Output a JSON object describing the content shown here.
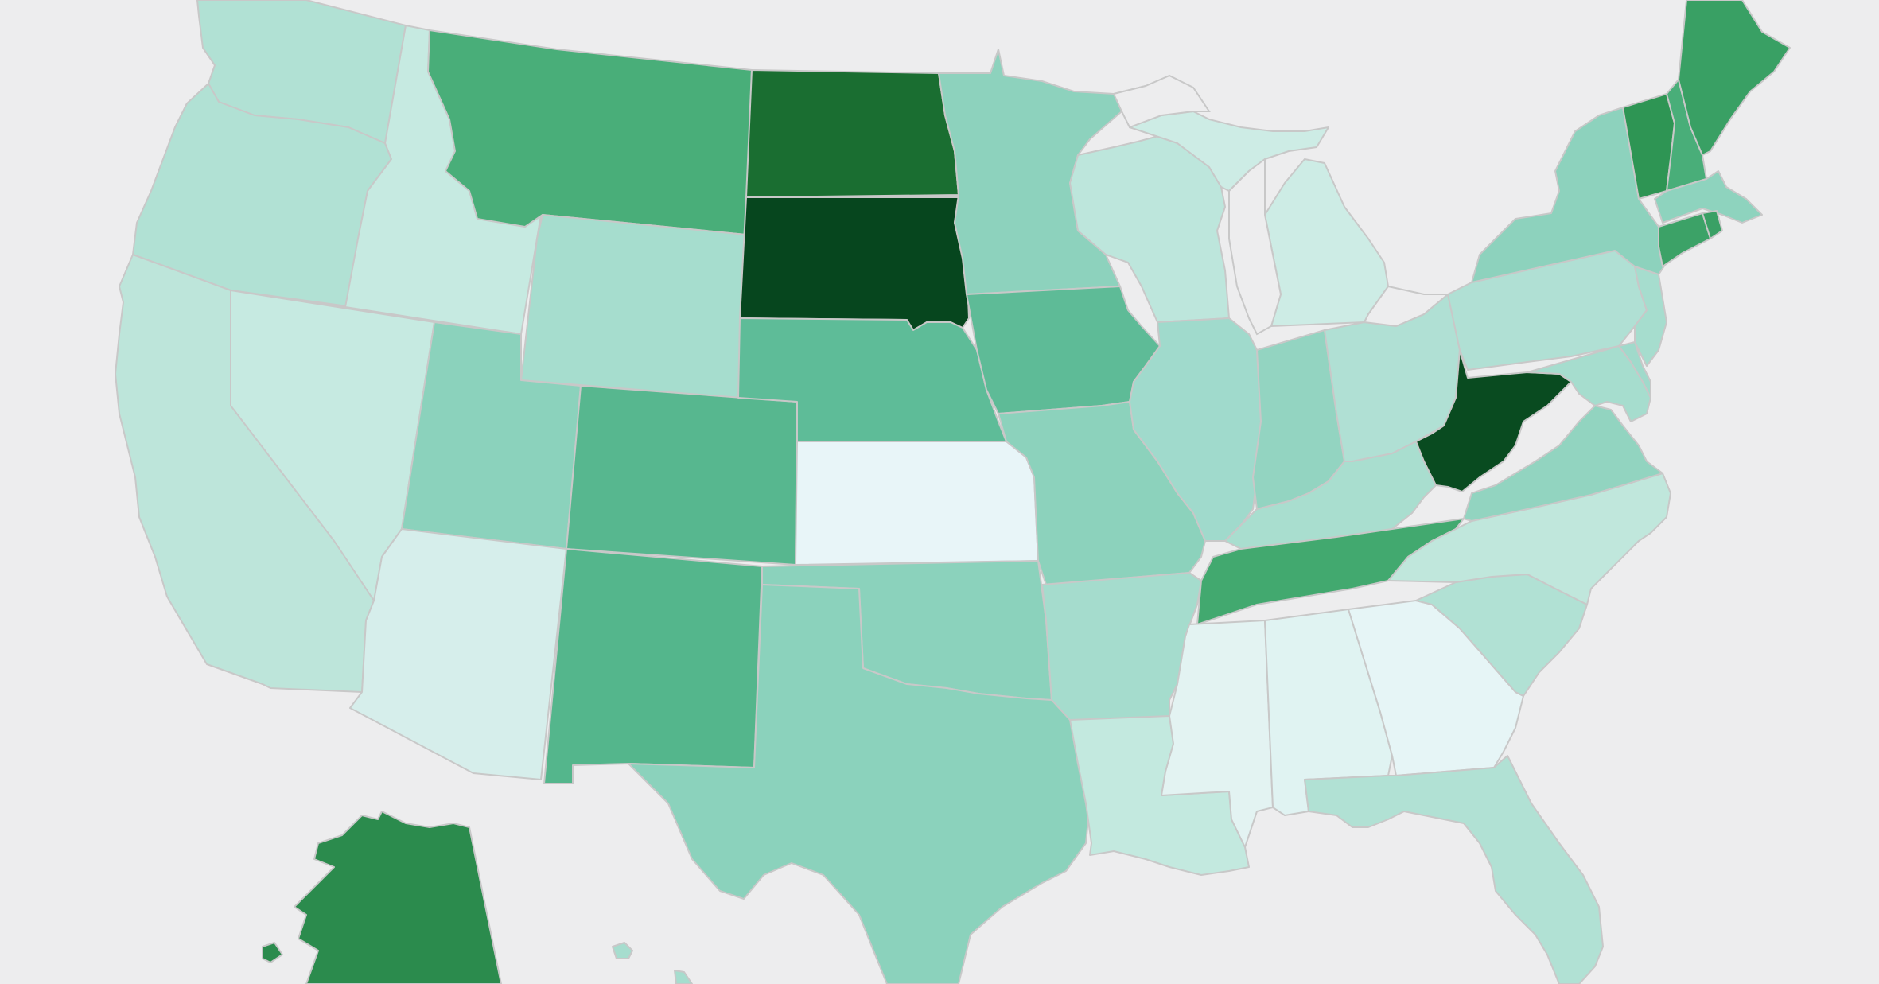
{
  "map": {
    "type": "choropleth",
    "region": "United States",
    "color_scale": [
      "#e8f5f8",
      "#d6eeeb",
      "#c3e9df",
      "#b1e1d4",
      "#a4dccd",
      "#8bd2bc",
      "#5dbb97",
      "#47ad78",
      "#3aa065",
      "#2b8b4d",
      "#1b6e31",
      "#06461e"
    ],
    "states": [
      {
        "code": "WA",
        "level": 4,
        "color": "#b1e1d4"
      },
      {
        "code": "OR",
        "level": 4,
        "color": "#b1e1d4"
      },
      {
        "code": "CA",
        "level": 3,
        "color": "#bde5da"
      },
      {
        "code": "ID",
        "level": 2,
        "color": "#c6eae1"
      },
      {
        "code": "NV",
        "level": 2,
        "color": "#c6eae1"
      },
      {
        "code": "MT",
        "level": 8,
        "color": "#49ae79"
      },
      {
        "code": "WY",
        "level": 5,
        "color": "#a6ddce"
      },
      {
        "code": "UT",
        "level": 6,
        "color": "#8bd2bc"
      },
      {
        "code": "AZ",
        "level": 1,
        "color": "#d6eeeb"
      },
      {
        "code": "CO",
        "level": 7,
        "color": "#57b78f"
      },
      {
        "code": "NM",
        "level": 7,
        "color": "#54b68c"
      },
      {
        "code": "ND",
        "level": 11,
        "color": "#1a6e31"
      },
      {
        "code": "SD",
        "level": 12,
        "color": "#06461e"
      },
      {
        "code": "NE",
        "level": 7,
        "color": "#5ebc98"
      },
      {
        "code": "KS",
        "level": 0,
        "color": "#e8f5f8"
      },
      {
        "code": "OK",
        "level": 6,
        "color": "#8bd2bc"
      },
      {
        "code": "TX",
        "level": 6,
        "color": "#8bd2bc"
      },
      {
        "code": "MN",
        "level": 6,
        "color": "#8dd2bd"
      },
      {
        "code": "IA",
        "level": 7,
        "color": "#5ebb97"
      },
      {
        "code": "MO",
        "level": 6,
        "color": "#8cd2bc"
      },
      {
        "code": "AR",
        "level": 5,
        "color": "#a5dccd"
      },
      {
        "code": "LA",
        "level": 2,
        "color": "#c3e9df"
      },
      {
        "code": "WI",
        "level": 3,
        "color": "#bde6dc"
      },
      {
        "code": "IL",
        "level": 5,
        "color": "#a0dacc"
      },
      {
        "code": "MI",
        "level": 2,
        "color": "#cdece5"
      },
      {
        "code": "IN",
        "level": 6,
        "color": "#93d4c1"
      },
      {
        "code": "OH",
        "level": 4,
        "color": "#b0e0d4"
      },
      {
        "code": "KY",
        "level": 5,
        "color": "#a9decf"
      },
      {
        "code": "TN",
        "level": 8,
        "color": "#42a96f"
      },
      {
        "code": "MS",
        "level": 1,
        "color": "#e3f3f2"
      },
      {
        "code": "AL",
        "level": 1,
        "color": "#e0f3f2"
      },
      {
        "code": "GA",
        "level": 0,
        "color": "#e6f5f6"
      },
      {
        "code": "FL",
        "level": 4,
        "color": "#b1e1d4"
      },
      {
        "code": "SC",
        "level": 4,
        "color": "#b1e1d4"
      },
      {
        "code": "NC",
        "level": 3,
        "color": "#c0e7dc"
      },
      {
        "code": "VA",
        "level": 6,
        "color": "#92d4c0"
      },
      {
        "code": "WV",
        "level": 12,
        "color": "#094b20"
      },
      {
        "code": "PA",
        "level": 4,
        "color": "#b0e0d4"
      },
      {
        "code": "NY",
        "level": 6,
        "color": "#8dd2bd"
      },
      {
        "code": "NJ",
        "level": 5,
        "color": "#a6ddce"
      },
      {
        "code": "DE",
        "level": 5,
        "color": "#a0dacb"
      },
      {
        "code": "MD",
        "level": 5,
        "color": "#a6ddce"
      },
      {
        "code": "CT",
        "level": 9,
        "color": "#3ca267"
      },
      {
        "code": "RI",
        "level": 9,
        "color": "#3aa065"
      },
      {
        "code": "MA",
        "level": 6,
        "color": "#8ed3be"
      },
      {
        "code": "VT",
        "level": 10,
        "color": "#2e9554"
      },
      {
        "code": "NH",
        "level": 8,
        "color": "#49ae79"
      },
      {
        "code": "ME",
        "level": 9,
        "color": "#39a064"
      },
      {
        "code": "AK",
        "level": 10,
        "color": "#2b8b4d"
      },
      {
        "code": "HI",
        "level": 5,
        "color": "#a6ddce"
      }
    ]
  }
}
